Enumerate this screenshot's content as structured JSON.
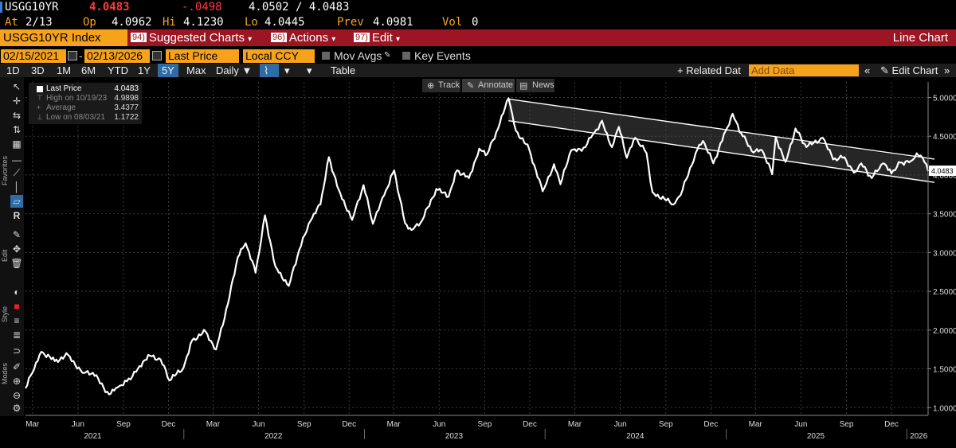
{
  "quote": {
    "ticker": "USGG10YR",
    "last": "4.0483",
    "change": "-.0498",
    "bid_ask": "4.0502 / 4.0483",
    "at_label": "At",
    "at_date": "2/13",
    "open_label": "Op",
    "open": "4.0962",
    "high_label": "Hi",
    "high": "4.1230",
    "low_label": "Lo",
    "low": "4.0445",
    "prev_label": "Prev",
    "prev": "4.0981",
    "vol_label": "Vol",
    "vol": "0"
  },
  "command_bar": {
    "security": "USGG10YR Index",
    "suggested_num": "94)",
    "suggested": "Suggested Charts",
    "actions_num": "96)",
    "actions": "Actions",
    "edit_num": "97)",
    "edit": "Edit",
    "chart_type": "Line Chart",
    "caret": "▾"
  },
  "date_row": {
    "start": "02/15/2021",
    "end": "02/13/2026",
    "dash": "-",
    "field": "Last Price",
    "currency": "Local CCY",
    "mov_avgs": "Mov Avgs",
    "key_events": "Key Events"
  },
  "toolbar": {
    "periods": [
      "1D",
      "3D",
      "1M",
      "6M",
      "YTD",
      "1Y",
      "5Y",
      "Max"
    ],
    "selected_period": "5Y",
    "frequency": "Daily",
    "table": "Table",
    "related": "+ Related Dat",
    "add_data_placeholder": "Add Data",
    "edit_chart": "Edit Chart"
  },
  "left_tools": {
    "favorites": "Favorites",
    "edit": "Edit",
    "style": "Style",
    "modes": "Modes"
  },
  "annotation_bar": {
    "track": "Track",
    "annotate": "Annotate",
    "news": "News"
  },
  "legend": {
    "last_price_label": "Last Price",
    "last_price": "4.0483",
    "high_label": "High on 10/19/23",
    "high": "4.9898",
    "average_label": "Average",
    "average": "3.4377",
    "low_label": "Low on 08/03/21",
    "low": "1.1722"
  },
  "colors": {
    "amber": "#f7a21b",
    "command_red": "#9b1622",
    "selected_blue": "#2e6ca8",
    "series": "#ffffff"
  },
  "chart_data": {
    "type": "line",
    "ylim": [
      0.9,
      5.2
    ],
    "yticks": [
      "1.0000",
      "1.5000",
      "2.0000",
      "2.5000",
      "3.0000",
      "3.5000",
      "4.0000",
      "4.5000",
      "5.0000"
    ],
    "ytick_values": [
      1.0,
      1.5,
      2.0,
      2.5,
      3.0,
      3.5,
      4.0,
      4.5,
      5.0
    ],
    "x_range": [
      "2021-02-15",
      "2026-02-13"
    ],
    "month_ticks": [
      {
        "label": "Mar",
        "date": "2021-03-01"
      },
      {
        "label": "Jun",
        "date": "2021-06-01"
      },
      {
        "label": "Sep",
        "date": "2021-09-01"
      },
      {
        "label": "Dec",
        "date": "2021-12-01"
      },
      {
        "label": "Mar",
        "date": "2022-03-01"
      },
      {
        "label": "Jun",
        "date": "2022-06-01"
      },
      {
        "label": "Sep",
        "date": "2022-09-01"
      },
      {
        "label": "Dec",
        "date": "2022-12-01"
      },
      {
        "label": "Mar",
        "date": "2023-03-01"
      },
      {
        "label": "Jun",
        "date": "2023-06-01"
      },
      {
        "label": "Sep",
        "date": "2023-09-01"
      },
      {
        "label": "Dec",
        "date": "2023-12-01"
      },
      {
        "label": "Mar",
        "date": "2024-03-01"
      },
      {
        "label": "Jun",
        "date": "2024-06-01"
      },
      {
        "label": "Sep",
        "date": "2024-09-01"
      },
      {
        "label": "Dec",
        "date": "2024-12-01"
      },
      {
        "label": "Mar",
        "date": "2025-03-01"
      },
      {
        "label": "Jun",
        "date": "2025-06-01"
      },
      {
        "label": "Sep",
        "date": "2025-09-01"
      },
      {
        "label": "Dec",
        "date": "2025-12-01"
      }
    ],
    "year_labels": [
      {
        "label": "2021",
        "date": "2021-07-01"
      },
      {
        "label": "2022",
        "date": "2022-07-01"
      },
      {
        "label": "2023",
        "date": "2023-07-01"
      },
      {
        "label": "2024",
        "date": "2024-07-01"
      },
      {
        "label": "2025",
        "date": "2025-07-01"
      },
      {
        "label": "2026",
        "date": "2026-01-25"
      }
    ],
    "last_value_label": "4.0483",
    "series": [
      {
        "name": "Last Price",
        "points": [
          [
            "2021-02-15",
            1.25
          ],
          [
            "2021-03-01",
            1.45
          ],
          [
            "2021-03-19",
            1.72
          ],
          [
            "2021-04-15",
            1.6
          ],
          [
            "2021-05-12",
            1.68
          ],
          [
            "2021-06-10",
            1.45
          ],
          [
            "2021-07-01",
            1.45
          ],
          [
            "2021-08-03",
            1.17
          ],
          [
            "2021-08-20",
            1.26
          ],
          [
            "2021-09-08",
            1.34
          ],
          [
            "2021-09-30",
            1.5
          ],
          [
            "2021-10-21",
            1.68
          ],
          [
            "2021-11-15",
            1.62
          ],
          [
            "2021-12-03",
            1.35
          ],
          [
            "2021-12-31",
            1.51
          ],
          [
            "2022-01-18",
            1.87
          ],
          [
            "2022-02-14",
            1.98
          ],
          [
            "2022-03-07",
            1.75
          ],
          [
            "2022-03-31",
            2.34
          ],
          [
            "2022-04-20",
            2.94
          ],
          [
            "2022-05-06",
            3.12
          ],
          [
            "2022-05-26",
            2.74
          ],
          [
            "2022-06-14",
            3.48
          ],
          [
            "2022-07-05",
            2.82
          ],
          [
            "2022-08-01",
            2.57
          ],
          [
            "2022-08-22",
            3.03
          ],
          [
            "2022-09-14",
            3.41
          ],
          [
            "2022-10-04",
            3.62
          ],
          [
            "2022-10-21",
            4.23
          ],
          [
            "2022-11-10",
            3.81
          ],
          [
            "2022-12-07",
            3.42
          ],
          [
            "2022-12-30",
            3.87
          ],
          [
            "2023-01-18",
            3.37
          ],
          [
            "2023-02-10",
            3.74
          ],
          [
            "2023-03-02",
            4.06
          ],
          [
            "2023-03-24",
            3.38
          ],
          [
            "2023-04-06",
            3.29
          ],
          [
            "2023-04-28",
            3.42
          ],
          [
            "2023-05-26",
            3.82
          ],
          [
            "2023-06-20",
            3.72
          ],
          [
            "2023-07-07",
            4.06
          ],
          [
            "2023-07-31",
            3.96
          ],
          [
            "2023-08-21",
            4.34
          ],
          [
            "2023-09-06",
            4.27
          ],
          [
            "2023-09-28",
            4.6
          ],
          [
            "2023-10-19",
            4.99
          ],
          [
            "2023-11-03",
            4.57
          ],
          [
            "2023-11-30",
            4.33
          ],
          [
            "2023-12-27",
            3.79
          ],
          [
            "2024-01-19",
            4.14
          ],
          [
            "2024-02-01",
            3.88
          ],
          [
            "2024-02-23",
            4.32
          ],
          [
            "2024-03-15",
            4.31
          ],
          [
            "2024-04-10",
            4.55
          ],
          [
            "2024-04-25",
            4.7
          ],
          [
            "2024-05-15",
            4.36
          ],
          [
            "2024-05-29",
            4.62
          ],
          [
            "2024-06-14",
            4.22
          ],
          [
            "2024-07-01",
            4.48
          ],
          [
            "2024-07-24",
            4.28
          ],
          [
            "2024-08-05",
            3.78
          ],
          [
            "2024-09-16",
            3.62
          ],
          [
            "2024-10-01",
            3.74
          ],
          [
            "2024-10-31",
            4.28
          ],
          [
            "2024-11-15",
            4.44
          ],
          [
            "2024-12-06",
            4.15
          ],
          [
            "2024-12-31",
            4.57
          ],
          [
            "2025-01-14",
            4.79
          ],
          [
            "2025-01-31",
            4.54
          ],
          [
            "2025-02-25",
            4.29
          ],
          [
            "2025-03-14",
            4.32
          ],
          [
            "2025-04-04",
            4.01
          ],
          [
            "2025-04-11",
            4.49
          ],
          [
            "2025-05-01",
            4.17
          ],
          [
            "2025-05-21",
            4.6
          ],
          [
            "2025-06-12",
            4.36
          ],
          [
            "2025-07-15",
            4.48
          ],
          [
            "2025-08-05",
            4.2
          ],
          [
            "2025-08-28",
            4.23
          ],
          [
            "2025-09-16",
            4.03
          ],
          [
            "2025-10-01",
            4.15
          ],
          [
            "2025-10-22",
            3.96
          ],
          [
            "2025-11-14",
            4.15
          ],
          [
            "2025-12-01",
            4.02
          ],
          [
            "2025-12-19",
            4.16
          ],
          [
            "2026-01-09",
            4.18
          ],
          [
            "2026-01-21",
            4.28
          ],
          [
            "2026-02-02",
            4.22
          ],
          [
            "2026-02-13",
            4.05
          ]
        ]
      }
    ],
    "trend_channel": {
      "upper": [
        [
          "2023-10-19",
          4.98
        ],
        [
          "2026-02-13",
          4.2
        ]
      ],
      "lower": [
        [
          "2023-10-19",
          4.7
        ],
        [
          "2026-02-13",
          3.9
        ]
      ]
    }
  }
}
